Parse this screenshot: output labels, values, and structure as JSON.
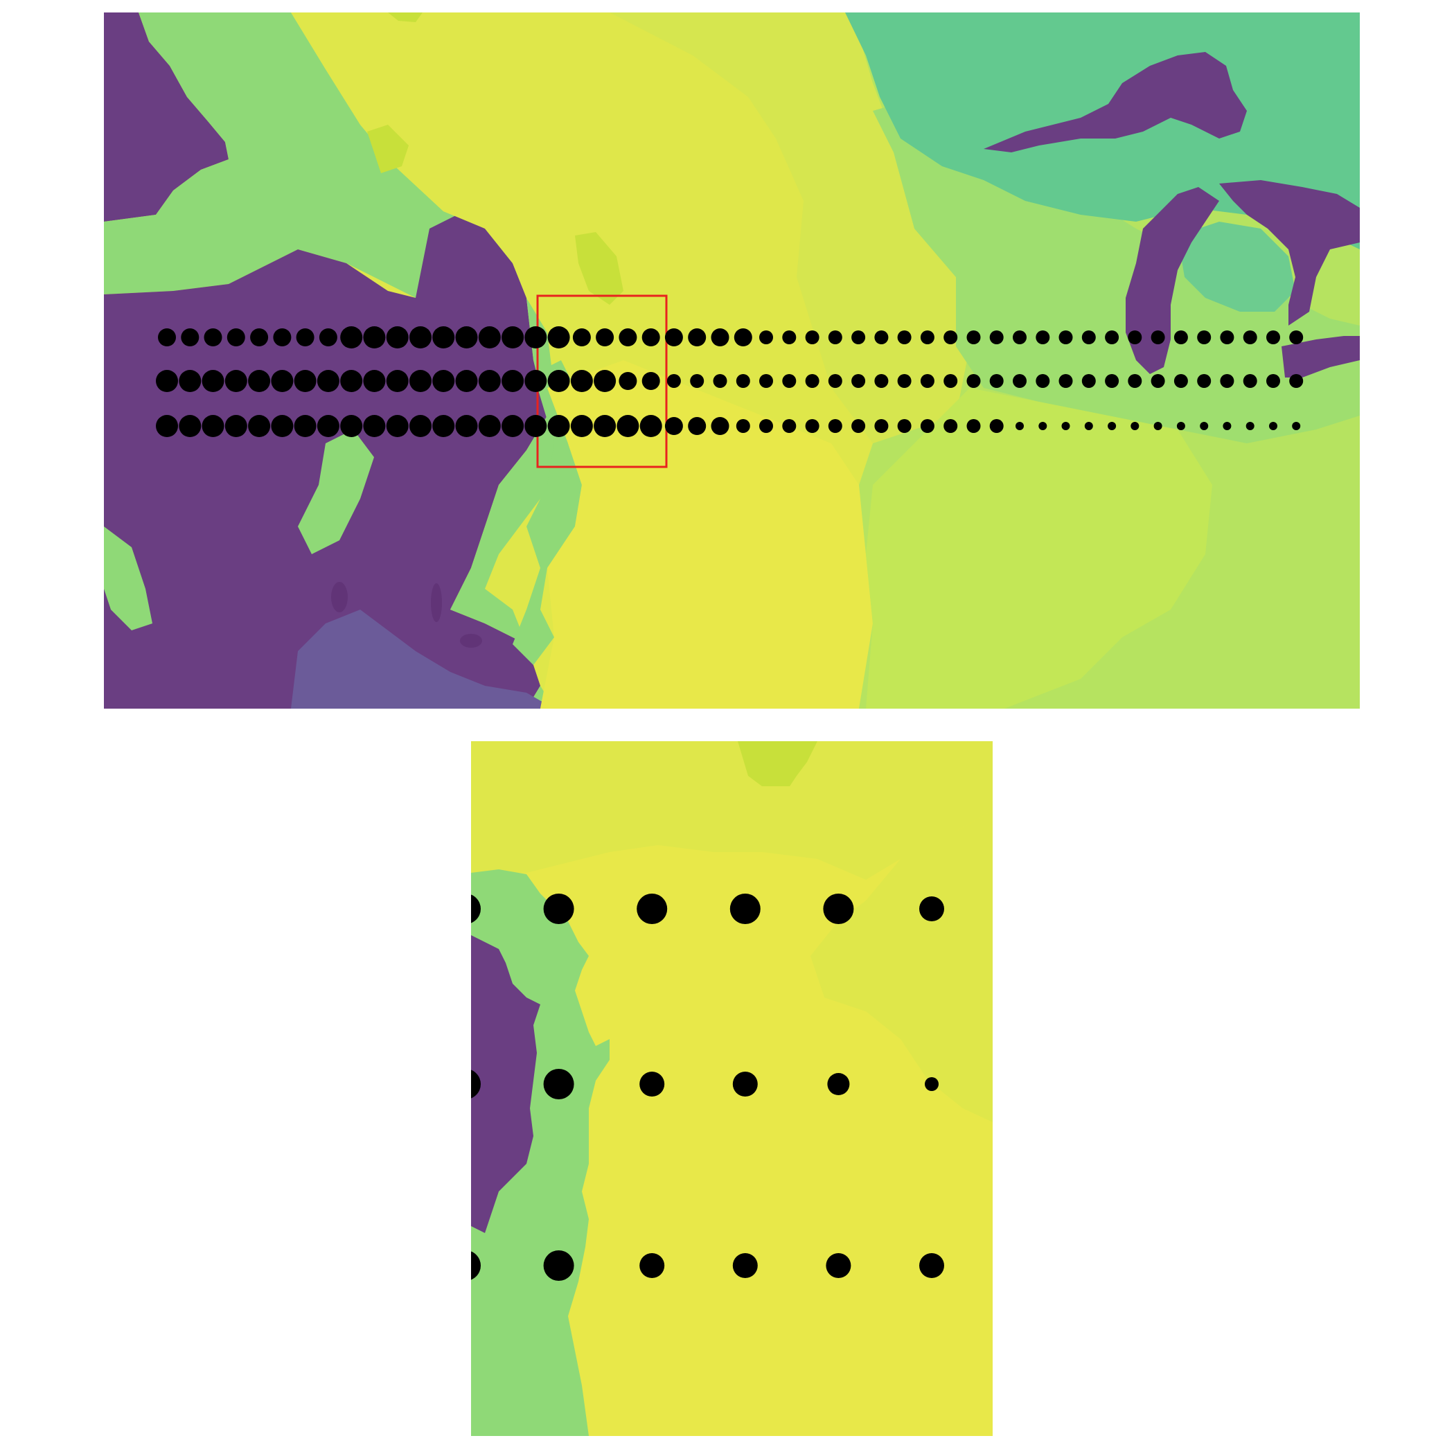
{
  "figure": {
    "panels": [
      "overview-map",
      "inset-map"
    ],
    "colors": {
      "purple": "#6a3e82",
      "dark_purple": "#613477",
      "blue_purple": "#6b5b99",
      "teal": "#63c98f",
      "teal_light": "#6dcc8f",
      "green": "#8fd977",
      "green_light": "#9fde6f",
      "lime": "#b6e360",
      "lime2": "#c3e756",
      "yellow_lime": "#d6e64f",
      "yellow": "#dfe74a",
      "bright_yellow": "#e8e849",
      "olive": "#c8e03a",
      "marker": "#000000",
      "highlight_box": "#e8231e"
    }
  },
  "chart_data": {
    "type": "scatter",
    "description_type": "proportional symbol map with inset",
    "rows": 3,
    "columns": 50,
    "marker_size_levels": {
      "row_1": [
        3,
        3,
        3,
        3,
        3,
        3,
        3,
        3,
        4,
        4,
        4,
        4,
        4,
        4,
        4,
        4,
        4,
        4,
        3,
        3,
        3,
        3,
        3,
        3,
        3,
        3,
        2,
        2,
        2,
        2,
        2,
        2,
        2,
        2,
        2,
        2,
        2,
        2,
        2,
        2,
        2,
        2,
        2,
        2,
        2,
        2,
        2,
        2,
        2,
        2
      ],
      "row_2": [
        4,
        4,
        4,
        4,
        4,
        4,
        4,
        4,
        4,
        4,
        4,
        4,
        4,
        4,
        4,
        4,
        4,
        4,
        4,
        4,
        3,
        3,
        2,
        2,
        2,
        2,
        2,
        2,
        2,
        2,
        2,
        2,
        2,
        2,
        2,
        2,
        2,
        2,
        2,
        2,
        2,
        2,
        2,
        2,
        2,
        2,
        2,
        2,
        2,
        2
      ],
      "row_3": [
        4,
        4,
        4,
        4,
        4,
        4,
        4,
        4,
        4,
        4,
        4,
        4,
        4,
        4,
        4,
        4,
        4,
        4,
        4,
        4,
        4,
        4,
        3,
        3,
        3,
        2,
        2,
        2,
        2,
        2,
        2,
        2,
        2,
        2,
        2,
        2,
        2,
        1,
        1,
        1,
        1,
        1,
        1,
        1,
        1,
        1,
        1,
        1,
        1,
        1
      ]
    },
    "inset": {
      "highlighted_columns": [
        17,
        18,
        19,
        20,
        21,
        22
      ],
      "marker_size_levels": {
        "row_1": [
          4,
          4,
          4,
          4,
          4,
          3
        ],
        "row_2": [
          4,
          4,
          3,
          3,
          2,
          1
        ],
        "row_3": [
          4,
          4,
          3,
          3,
          3,
          3
        ]
      }
    }
  }
}
